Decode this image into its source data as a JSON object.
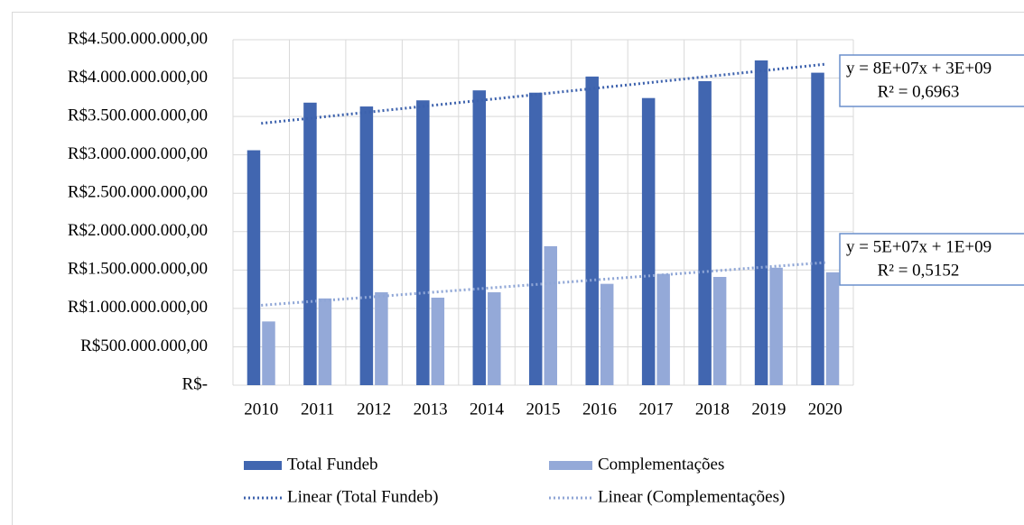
{
  "chart_data": {
    "type": "bar",
    "categories": [
      "2010",
      "2011",
      "2012",
      "2013",
      "2014",
      "2015",
      "2016",
      "2017",
      "2018",
      "2019",
      "2020"
    ],
    "series": [
      {
        "name": "Total Fundeb",
        "color": "#4166b0",
        "values": [
          3060000000,
          3680000000,
          3630000000,
          3710000000,
          3840000000,
          3810000000,
          4020000000,
          3740000000,
          3960000000,
          4230000000,
          4070000000
        ]
      },
      {
        "name": "Complementações",
        "color": "#94a9d8",
        "values": [
          830000000,
          1130000000,
          1210000000,
          1140000000,
          1210000000,
          1810000000,
          1320000000,
          1450000000,
          1410000000,
          1530000000,
          1470000000
        ]
      }
    ],
    "trendlines": [
      {
        "name": "Linear (Total Fundeb)",
        "color": "#3d62ad",
        "equation": "y = 8E+07x + 3E+09",
        "r_squared": "R² = 0,6963"
      },
      {
        "name": "Linear (Complementações)",
        "color": "#8fa6d6",
        "equation": "y = 5E+07x + 1E+09",
        "r_squared": "R² = 0,5152"
      }
    ],
    "ylim": [
      0,
      4500000000
    ],
    "yticks": [
      {
        "value": 0,
        "label": "R$-"
      },
      {
        "value": 500000000,
        "label": "R$500.000.000,00"
      },
      {
        "value": 1000000000,
        "label": "R$1.000.000.000,00"
      },
      {
        "value": 1500000000,
        "label": "R$1.500.000.000,00"
      },
      {
        "value": 2000000000,
        "label": "R$2.000.000.000,00"
      },
      {
        "value": 2500000000,
        "label": "R$2.500.000.000,00"
      },
      {
        "value": 3000000000,
        "label": "R$3.000.000.000,00"
      },
      {
        "value": 3500000000,
        "label": "R$3.500.000.000,00"
      },
      {
        "value": 4000000000,
        "label": "R$4.000.000.000,00"
      },
      {
        "value": 4500000000,
        "label": "R$4.500.000.000,00"
      }
    ],
    "grid": true
  }
}
